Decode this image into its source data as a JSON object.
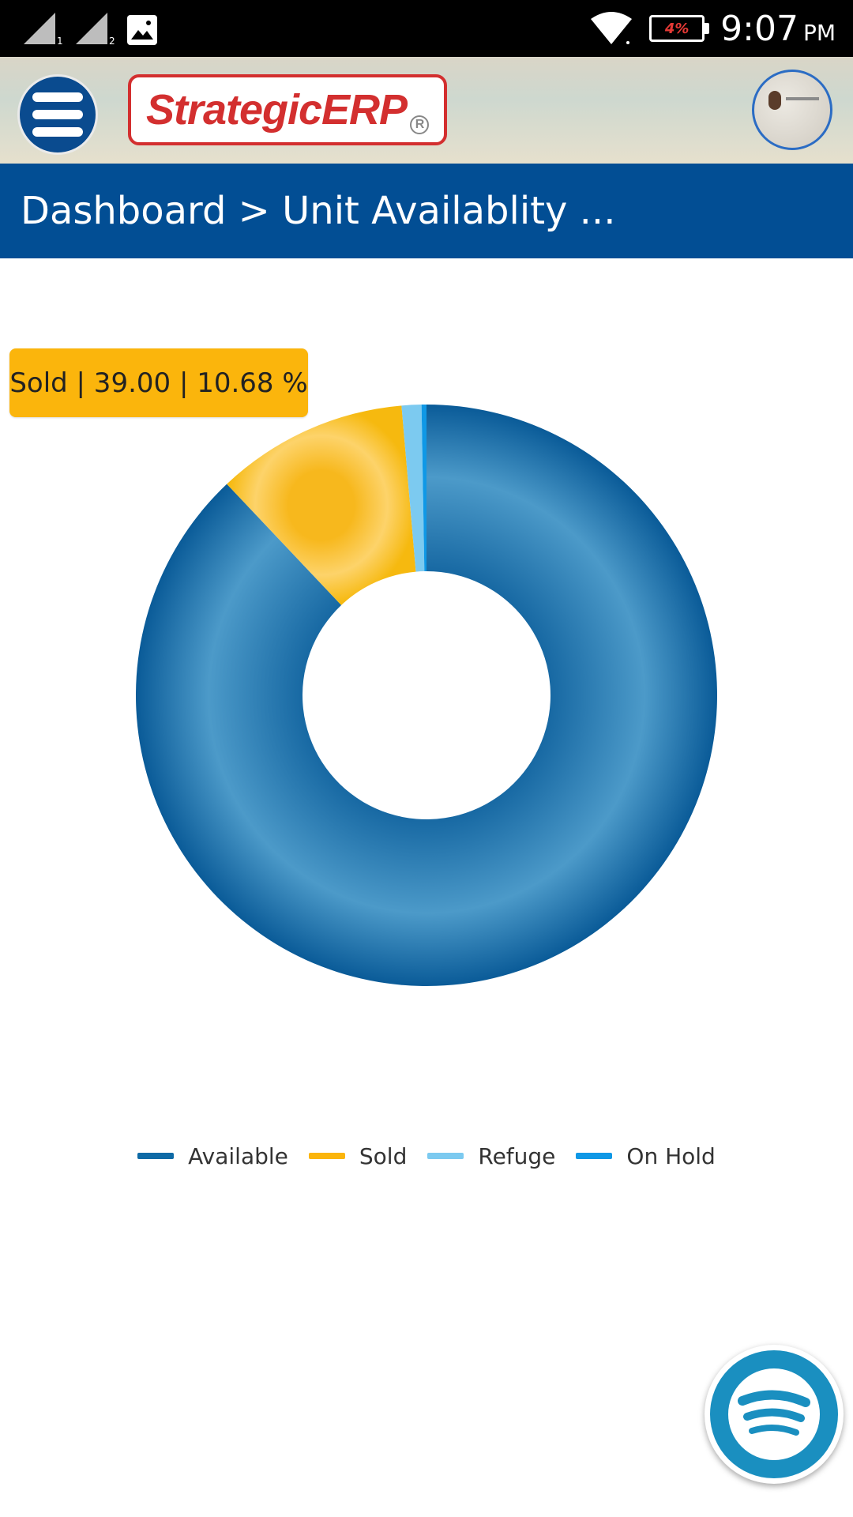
{
  "status_bar": {
    "time": "9:07",
    "ampm": "PM",
    "battery": "4%"
  },
  "header": {
    "logo": "StrategicERP",
    "logo_reg": "R"
  },
  "breadcrumb": {
    "text": "Dashboard > Unit Availablity ..."
  },
  "tooltip": {
    "text": "Sold | 39.00 | 10.68 %"
  },
  "colors": {
    "primary": "#024e94",
    "available": "#0e6aa6",
    "sold": "#fbb50c",
    "refuge": "#7ccaf0",
    "on_hold": "#0f98e6"
  },
  "chart_data": {
    "type": "pie",
    "donut": true,
    "title": "",
    "series": [
      {
        "name": "Available",
        "value": 321,
        "percent": 87.95,
        "color": "#0e6aa6"
      },
      {
        "name": "Sold",
        "value": 39.0,
        "percent": 10.68,
        "color": "#fbb50c"
      },
      {
        "name": "Refuge",
        "value": 4,
        "percent": 1.1,
        "color": "#7ccaf0"
      },
      {
        "name": "On Hold",
        "value": 1,
        "percent": 0.27,
        "color": "#0f98e6"
      }
    ],
    "legend_position": "bottom-center",
    "highlighted": "Sold"
  },
  "legend": {
    "items": [
      {
        "label": "Available",
        "color": "#0e6aa6"
      },
      {
        "label": "Sold",
        "color": "#fbb50c"
      },
      {
        "label": "Refuge",
        "color": "#7ccaf0"
      },
      {
        "label": "On Hold",
        "color": "#0f98e6"
      }
    ]
  }
}
